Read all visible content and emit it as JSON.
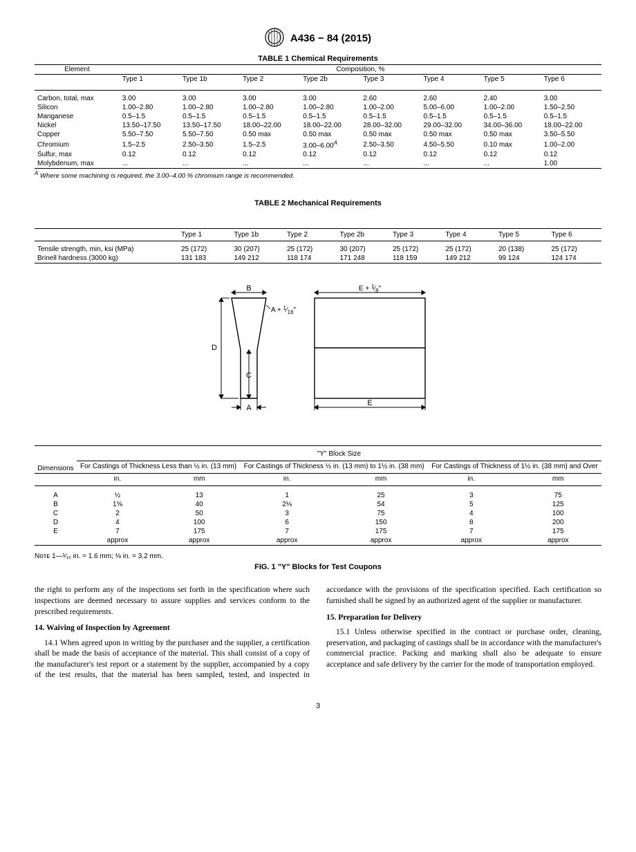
{
  "header": {
    "standard": "A436 − 84 (2015)"
  },
  "table1": {
    "title": "TABLE 1 Chemical Requirements",
    "col1": "Element",
    "super": "Composition, %",
    "types": [
      "Type 1",
      "Type 1b",
      "Type 2",
      "Type 2b",
      "Type 3",
      "Type 4",
      "Type 5",
      "Type 6"
    ],
    "rows": [
      {
        "el": "Carbon, total, max",
        "v": [
          "3.00",
          "3.00",
          "3.00",
          "3.00",
          "2.60",
          "2.60",
          "2.40",
          "3.00"
        ]
      },
      {
        "el": "Silicon",
        "v": [
          "1.00–2.80",
          "1.00–2.80",
          "1.00–2.80",
          "1.00–2.80",
          "1.00–2.00",
          "5.00–6.00",
          "1.00–2.00",
          "1.50–2.50"
        ]
      },
      {
        "el": "Manganese",
        "v": [
          "0.5–1.5",
          "0.5–1.5",
          "0.5–1.5",
          "0.5–1.5",
          "0.5–1.5",
          "0.5–1.5",
          "0.5–1.5",
          "0.5–1.5"
        ]
      },
      {
        "el": "Nickel",
        "v": [
          "13.50–17.50",
          "13.50–17.50",
          "18.00–22.00",
          "18.00–22.00",
          "28.00–32.00",
          "29.00–32.00",
          "34.00–36.00",
          "18.00–22.00"
        ]
      },
      {
        "el": "Copper",
        "v": [
          "5.50–7.50",
          "5.50–7.50",
          "0.50 max",
          "0.50 max",
          "0.50 max",
          "0.50 max",
          "0.50 max",
          "3.50–5.50"
        ]
      },
      {
        "el": "Chromium",
        "v": [
          "1.5–2.5",
          "2.50–3.50",
          "1.5–2.5",
          "3.00–6.00ᴬ",
          "2.50–3.50",
          "4.50–5.50",
          "0.10 max",
          "1.00–2.00"
        ],
        "sup": [
          false,
          false,
          false,
          true,
          false,
          false,
          false,
          false
        ]
      },
      {
        "el": "Sulfur, max",
        "v": [
          "0.12",
          "0.12",
          "0.12",
          "0.12",
          "0.12",
          "0.12",
          "0.12",
          "0.12"
        ]
      },
      {
        "el": "Molybdenum, max",
        "v": [
          "...",
          "...",
          "...",
          "...",
          "...",
          "...",
          "...",
          "1.00"
        ]
      }
    ],
    "footnote_label": "A",
    "footnote": "Where some machining is required, the 3.00–4.00 % chromium range is recommended."
  },
  "table2": {
    "title": "TABLE 2 Mechanical Requirements",
    "types": [
      "Type 1",
      "Type 1b",
      "Type 2",
      "Type 2b",
      "Type 3",
      "Type 4",
      "Type 5",
      "Type 6"
    ],
    "rows": [
      {
        "p": "Tensile strength, min, ksi (MPa)",
        "v": [
          "25 (172)",
          "30 (207)",
          "25 (172)",
          "30 (207)",
          "25 (172)",
          "25 (172)",
          "20 (138)",
          "25 (172)"
        ]
      },
      {
        "p": "Brinell hardness (3000 kg)",
        "v": [
          "131 183",
          "149 212",
          "118 174",
          "171 248",
          "118 159",
          "149 212",
          "99 124",
          "124 174"
        ]
      }
    ]
  },
  "table3": {
    "dim_label": "Dimensions",
    "super": "\"Y\" Block Size",
    "groups": [
      "For Castings of Thickness Less than ½ in. (13 mm)",
      "For Castings of Thickness ½ in. (13 mm) to 1½ in. (38 mm)",
      "For Castings of Thickness of 1½ in. (38 mm) and Over"
    ],
    "units": [
      "in.",
      "mm",
      "in.",
      "mm",
      "in.",
      "mm"
    ],
    "rows": [
      {
        "d": "A",
        "v": [
          "½",
          "13",
          "1",
          "25",
          "3",
          "75"
        ]
      },
      {
        "d": "B",
        "v": [
          "1⅝",
          "40",
          "2⅛",
          "54",
          "5",
          "125"
        ]
      },
      {
        "d": "C",
        "v": [
          "2",
          "50",
          "3",
          "75",
          "4",
          "100"
        ]
      },
      {
        "d": "D",
        "v": [
          "4",
          "100",
          "6",
          "150",
          "8",
          "200"
        ]
      },
      {
        "d": "E",
        "v": [
          "7",
          "175",
          "7",
          "175",
          "7",
          "175"
        ]
      },
      {
        "d": "",
        "v": [
          "approx",
          "approx",
          "approx",
          "approx",
          "approx",
          "approx"
        ]
      }
    ],
    "note_label": "Nᴏᴛᴇ",
    "note": "1—¹⁄₁₆ in. = 1.6 mm; ⅛ in. = 3.2 mm.",
    "fig_title": "FIG. 1  \"Y\" Blocks for Test Coupons"
  },
  "body": {
    "p1": "the right to perform any of the inspections set forth in the specification where such inspections are deemed necessary to assure supplies and services conform to the prescribed requirements.",
    "s14_title": "14. Waiving of Inspection by Agreement",
    "s14_1": "14.1 When agreed upon in writing by the purchaser and the supplier, a certification shall be made the basis of acceptance of the material. This shall consist of a copy of the manufacturer's test report or a statement by the supplier, accompanied by a copy of the test results, that the material has been sampled, tested, and inspected in accordance with the provisions of the specification specified. Each certification so furnished shall be signed by an authorized agent of the supplier or manufacturer.",
    "s15_title": "15. Preparation for Delivery",
    "s15_1": "15.1 Unless otherwise specified in the contract or purchase order, cleaning, preservation, and packaging of castings shall be in accordance with the manufacturer's commercial practice. Packing and marking shall also be adequate to ensure acceptance and safe delivery by the carrier for the mode of transportation employed."
  },
  "page": "3",
  "diagram": {
    "labels": {
      "A": "A",
      "B": "B",
      "C": "C",
      "D": "D",
      "E": "E",
      "Aplus": "A + ¹⁄₁₆″",
      "Eplus": "E + ⅛″"
    }
  }
}
